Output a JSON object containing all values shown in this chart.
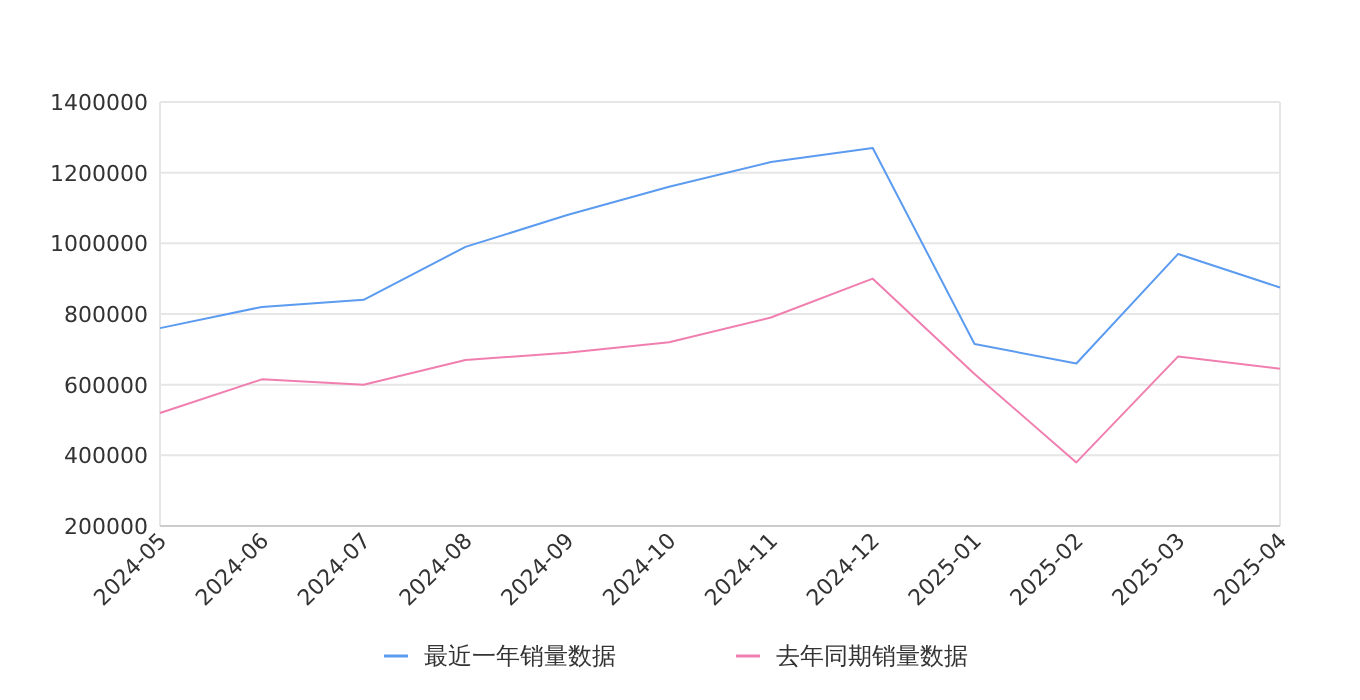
{
  "chart_data": {
    "type": "line",
    "categories": [
      "2024-05",
      "2024-06",
      "2024-07",
      "2024-08",
      "2024-09",
      "2024-10",
      "2024-11",
      "2024-12",
      "2025-01",
      "2025-02",
      "2025-03",
      "2025-04"
    ],
    "series": [
      {
        "name": "最近一年销量数据",
        "color": "#5b9bf0",
        "values": [
          760000,
          820000,
          840000,
          990000,
          1080000,
          1160000,
          1230000,
          1270000,
          715000,
          660000,
          970000,
          875000
        ]
      },
      {
        "name": "去年同期销量数据",
        "color": "#f07fb0",
        "values": [
          520000,
          615000,
          600000,
          670000,
          690000,
          720000,
          790000,
          900000,
          630000,
          380000,
          680000,
          645000
        ]
      }
    ],
    "ylim": [
      200000,
      1400000
    ],
    "yticks": [
      200000,
      400000,
      600000,
      800000,
      1000000,
      1200000,
      1400000
    ],
    "grid": "y",
    "legend": "bottom",
    "marker": "none"
  }
}
